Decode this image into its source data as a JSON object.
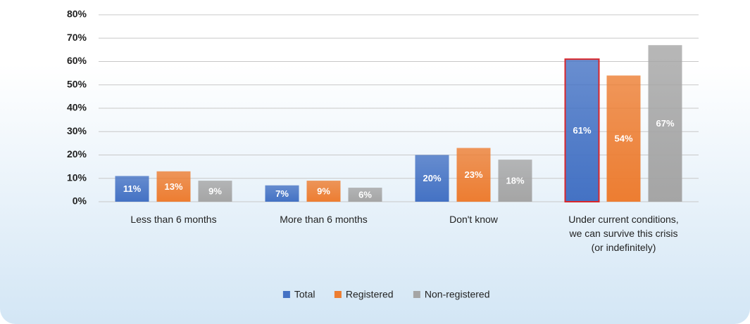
{
  "chart_data": {
    "type": "bar",
    "categories": [
      "Less than 6 months",
      "More than 6 months",
      "Don't know",
      "Under current conditions, we can survive this crisis (or indefinitely)"
    ],
    "series": [
      {
        "name": "Total",
        "color": "#4472c4",
        "values": [
          11,
          7,
          20,
          61
        ],
        "value_labels": [
          "11%",
          "7%",
          "20%",
          "61%"
        ]
      },
      {
        "name": "Registered",
        "color": "#ed7d31",
        "values": [
          13,
          9,
          23,
          54
        ],
        "value_labels": [
          "13%",
          "9%",
          "23%",
          "54%"
        ]
      },
      {
        "name": "Non-registered",
        "color": "#a5a5a5",
        "values": [
          9,
          6,
          18,
          67
        ],
        "value_labels": [
          "9%",
          "6%",
          "18%",
          "67%"
        ]
      }
    ],
    "ylim": [
      0,
      80
    ],
    "yticks": [
      {
        "value": 0,
        "label": "0%"
      },
      {
        "value": 10,
        "label": "10%"
      },
      {
        "value": 20,
        "label": "20%"
      },
      {
        "value": 30,
        "label": "30%"
      },
      {
        "value": 40,
        "label": "40%"
      },
      {
        "value": 50,
        "label": "50%"
      },
      {
        "value": 60,
        "label": "60%"
      },
      {
        "value": 70,
        "label": "70%"
      },
      {
        "value": 80,
        "label": "80%"
      }
    ],
    "grid": true,
    "legend": "bottom",
    "highlight": {
      "series": 0,
      "index": 3,
      "color": "#d9262b"
    }
  }
}
